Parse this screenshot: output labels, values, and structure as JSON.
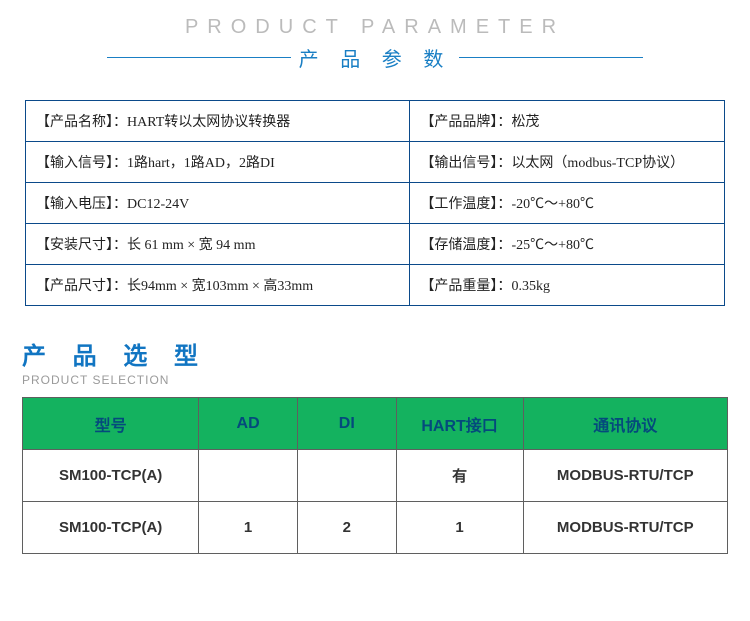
{
  "header": {
    "title_en": "PRODUCT  PARAMETER",
    "title_zh": "产 品 参 数",
    "line_color": "#1a7fc4",
    "en_color": "#bbbbbb",
    "zh_color": "#1a7fc4"
  },
  "params_table": {
    "border_color": "#0b4a8a",
    "rows": [
      {
        "left_label": "【产品名称】：",
        "left_value": "HART转以太网协议转换器",
        "right_label": "【产品品牌】：",
        "right_value": "松茂"
      },
      {
        "left_label": "【输入信号】：",
        "left_value": "1路hart，1路AD，2路DI",
        "right_label": "【输出信号】：",
        "right_value": "以太网（modbus-TCP协议）"
      },
      {
        "left_label": "【输入电压】：",
        "left_value": "DC12-24V",
        "right_label": "【工作温度】：",
        "right_value": "-20℃～+80℃"
      },
      {
        "left_label": "【安装尺寸】：",
        "left_value": "长 61 mm × 宽 94 mm",
        "right_label": "【存储温度】：",
        "right_value": "-25℃～+80℃"
      },
      {
        "left_label": "【产品尺寸】：",
        "left_value": "长94mm × 宽103mm × 高33mm",
        "right_label": "【产品重量】：",
        "right_value": "0.35kg"
      }
    ]
  },
  "section2": {
    "title_zh": "产 品 选 型",
    "title_en": "PRODUCT SELECTION",
    "zh_color": "#1175c2",
    "en_color": "#9a9a9a"
  },
  "sel_table": {
    "header_bg": "#14b25f",
    "header_fg": "#044a7c",
    "border_color": "#5f5f5f",
    "col_widths": [
      "25%",
      "14%",
      "14%",
      "18%",
      "29%"
    ],
    "headers": [
      "型号",
      "AD",
      "DI",
      "HART接口",
      "通讯协议"
    ],
    "rows": [
      [
        "SM100-TCP(A)",
        "",
        "",
        "有",
        "MODBUS-RTU/TCP"
      ],
      [
        "SM100-TCP(A)",
        "1",
        "2",
        "1",
        "MODBUS-RTU/TCP"
      ]
    ]
  }
}
